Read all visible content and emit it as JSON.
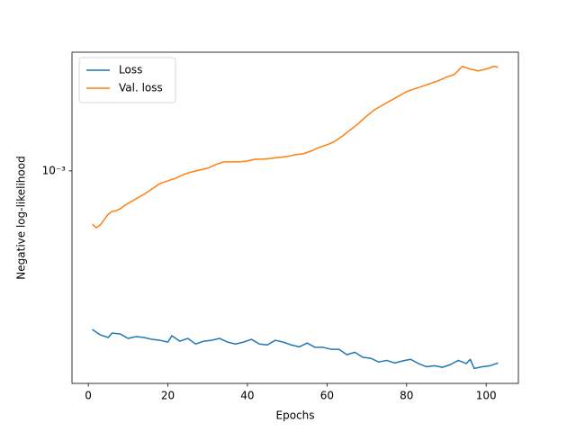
{
  "chart_data": {
    "type": "line",
    "xlabel": "Epochs",
    "ylabel": "Negative log-likelihood",
    "xlim": [
      -4.1,
      108.1
    ],
    "xticks": [
      0,
      20,
      40,
      60,
      80,
      100
    ],
    "ylim": [
      0.000265,
      0.0021
    ],
    "yscale": "log",
    "yticks": [
      {
        "value": 0.001,
        "label": "10⁻³"
      }
    ],
    "legend": "upper left",
    "grid": false,
    "series": [
      {
        "name": "Loss",
        "color": "#1f77b4",
        "x": [
          1,
          3,
          5,
          6,
          8,
          10,
          12,
          14,
          16,
          18,
          20,
          21,
          23,
          25,
          27,
          29,
          31,
          33,
          35,
          37,
          39,
          41,
          43,
          45,
          47,
          49,
          51,
          53,
          55,
          57,
          59,
          61,
          63,
          65,
          67,
          69,
          71,
          73,
          75,
          77,
          79,
          81,
          83,
          85,
          87,
          89,
          91,
          93,
          95,
          96,
          97,
          99,
          101,
          103
        ],
        "values": [
          0.000371,
          0.000359,
          0.000353,
          0.000363,
          0.000361,
          0.000351,
          0.000355,
          0.000353,
          0.000349,
          0.000347,
          0.000343,
          0.000357,
          0.000345,
          0.000351,
          0.000339,
          0.000345,
          0.000347,
          0.000351,
          0.000343,
          0.000339,
          0.000343,
          0.000349,
          0.000339,
          0.000337,
          0.000347,
          0.000343,
          0.000337,
          0.000333,
          0.000341,
          0.000332,
          0.000332,
          0.000328,
          0.000328,
          0.000317,
          0.000322,
          0.000312,
          0.00031,
          0.000303,
          0.000306,
          0.000301,
          0.000305,
          0.000308,
          0.0003,
          0.000294,
          0.000296,
          0.000293,
          0.000298,
          0.000306,
          0.0003,
          0.000308,
          0.000291,
          0.000294,
          0.000296,
          0.000301
        ]
      },
      {
        "name": "Val. loss",
        "color": "#ff7f0e",
        "x": [
          1,
          2,
          3,
          4,
          5,
          6,
          7,
          8,
          9,
          10,
          12,
          14,
          16,
          18,
          20,
          22,
          24,
          26,
          28,
          30,
          32,
          34,
          36,
          38,
          40,
          42,
          44,
          46,
          48,
          50,
          52,
          54,
          56,
          58,
          60,
          62,
          64,
          66,
          68,
          70,
          72,
          74,
          76,
          78,
          80,
          82,
          84,
          86,
          88,
          90,
          92,
          94,
          96,
          98,
          100,
          102,
          103
        ],
        "values": [
          0.000717,
          0.000701,
          0.000713,
          0.000738,
          0.000763,
          0.000776,
          0.00078,
          0.000789,
          0.000803,
          0.000816,
          0.00084,
          0.000864,
          0.000893,
          0.000924,
          0.00094,
          0.000956,
          0.000978,
          0.000994,
          0.001006,
          0.001017,
          0.00104,
          0.001058,
          0.001058,
          0.001058,
          0.001064,
          0.001076,
          0.001076,
          0.001082,
          0.001088,
          0.001094,
          0.001107,
          0.001113,
          0.001132,
          0.001158,
          0.001177,
          0.001204,
          0.001246,
          0.001296,
          0.001348,
          0.00141,
          0.001467,
          0.001509,
          0.001552,
          0.001596,
          0.001641,
          0.00167,
          0.001698,
          0.001727,
          0.001757,
          0.001797,
          0.001827,
          0.001922,
          0.00189,
          0.001869,
          0.00189,
          0.001922,
          0.001911
        ]
      }
    ]
  }
}
